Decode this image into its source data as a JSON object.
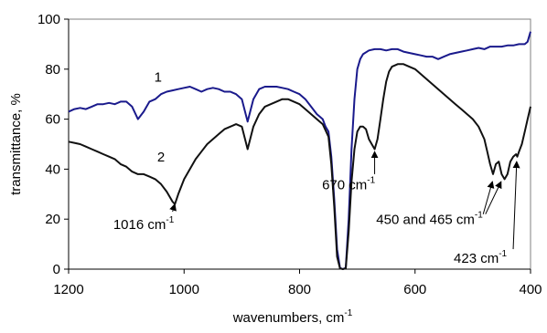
{
  "chart_data": {
    "type": "line",
    "title": "",
    "xlabel": "wavenumbers, cm",
    "xlabel_sup": "-1",
    "ylabel": "transmittance, %",
    "xlim": [
      1200,
      400
    ],
    "ylim": [
      0,
      100
    ],
    "x_reversed": true,
    "xticks": [
      1200,
      1000,
      800,
      600,
      400
    ],
    "yticks": [
      0,
      20,
      40,
      60,
      80,
      100
    ],
    "grid": false,
    "legend": "none",
    "series": [
      {
        "name": "1",
        "color": "#1a1a8c",
        "points": [
          [
            1200,
            63
          ],
          [
            1190,
            64
          ],
          [
            1180,
            64.5
          ],
          [
            1170,
            64
          ],
          [
            1160,
            65
          ],
          [
            1150,
            66
          ],
          [
            1140,
            66
          ],
          [
            1130,
            66.5
          ],
          [
            1120,
            66
          ],
          [
            1110,
            67
          ],
          [
            1100,
            67
          ],
          [
            1090,
            65
          ],
          [
            1080,
            60
          ],
          [
            1070,
            63
          ],
          [
            1060,
            67
          ],
          [
            1050,
            68
          ],
          [
            1040,
            70
          ],
          [
            1030,
            71
          ],
          [
            1020,
            71.5
          ],
          [
            1010,
            72
          ],
          [
            1000,
            72.5
          ],
          [
            990,
            73
          ],
          [
            980,
            72
          ],
          [
            970,
            71
          ],
          [
            960,
            72
          ],
          [
            950,
            72.5
          ],
          [
            940,
            72
          ],
          [
            930,
            71
          ],
          [
            920,
            71
          ],
          [
            910,
            70
          ],
          [
            900,
            68
          ],
          [
            890,
            59
          ],
          [
            880,
            68
          ],
          [
            870,
            72
          ],
          [
            860,
            73
          ],
          [
            850,
            73
          ],
          [
            840,
            73
          ],
          [
            830,
            72.5
          ],
          [
            820,
            72
          ],
          [
            810,
            71
          ],
          [
            800,
            70
          ],
          [
            790,
            68
          ],
          [
            780,
            65
          ],
          [
            770,
            62
          ],
          [
            760,
            60
          ],
          [
            755,
            57
          ],
          [
            750,
            55
          ],
          [
            745,
            45
          ],
          [
            740,
            28
          ],
          [
            735,
            8
          ],
          [
            730,
            0.5
          ],
          [
            725,
            0
          ],
          [
            720,
            0.5
          ],
          [
            715,
            20
          ],
          [
            710,
            48
          ],
          [
            705,
            68
          ],
          [
            700,
            80
          ],
          [
            695,
            84
          ],
          [
            690,
            86
          ],
          [
            680,
            87.5
          ],
          [
            670,
            88
          ],
          [
            660,
            88
          ],
          [
            650,
            87.5
          ],
          [
            640,
            88
          ],
          [
            630,
            88
          ],
          [
            620,
            87
          ],
          [
            610,
            86.5
          ],
          [
            600,
            86
          ],
          [
            590,
            85.5
          ],
          [
            580,
            85
          ],
          [
            570,
            85
          ],
          [
            560,
            84
          ],
          [
            550,
            85
          ],
          [
            540,
            86
          ],
          [
            530,
            86.5
          ],
          [
            520,
            87
          ],
          [
            510,
            87.5
          ],
          [
            500,
            88
          ],
          [
            490,
            88.5
          ],
          [
            480,
            88
          ],
          [
            470,
            89
          ],
          [
            460,
            89
          ],
          [
            450,
            89
          ],
          [
            440,
            89.5
          ],
          [
            430,
            89.5
          ],
          [
            420,
            90
          ],
          [
            410,
            90
          ],
          [
            405,
            91
          ],
          [
            400,
            95
          ]
        ]
      },
      {
        "name": "2",
        "color": "#111111",
        "points": [
          [
            1200,
            51
          ],
          [
            1190,
            50.5
          ],
          [
            1180,
            50
          ],
          [
            1170,
            49
          ],
          [
            1160,
            48
          ],
          [
            1150,
            47
          ],
          [
            1140,
            46
          ],
          [
            1130,
            45
          ],
          [
            1120,
            44
          ],
          [
            1110,
            42
          ],
          [
            1100,
            41
          ],
          [
            1090,
            39
          ],
          [
            1080,
            38
          ],
          [
            1070,
            38
          ],
          [
            1060,
            37
          ],
          [
            1050,
            36
          ],
          [
            1040,
            34
          ],
          [
            1030,
            31
          ],
          [
            1020,
            27
          ],
          [
            1016,
            26
          ],
          [
            1010,
            30
          ],
          [
            1000,
            36
          ],
          [
            990,
            40
          ],
          [
            980,
            44
          ],
          [
            970,
            47
          ],
          [
            960,
            50
          ],
          [
            950,
            52
          ],
          [
            940,
            54
          ],
          [
            930,
            56
          ],
          [
            920,
            57
          ],
          [
            910,
            58
          ],
          [
            900,
            57
          ],
          [
            890,
            48
          ],
          [
            880,
            57
          ],
          [
            870,
            62
          ],
          [
            860,
            65
          ],
          [
            850,
            66
          ],
          [
            840,
            67
          ],
          [
            830,
            68
          ],
          [
            820,
            68
          ],
          [
            810,
            67
          ],
          [
            800,
            66
          ],
          [
            790,
            64
          ],
          [
            780,
            62
          ],
          [
            770,
            60
          ],
          [
            760,
            58
          ],
          [
            750,
            53
          ],
          [
            745,
            42
          ],
          [
            740,
            25
          ],
          [
            735,
            5
          ],
          [
            730,
            0.3
          ],
          [
            725,
            0
          ],
          [
            720,
            0.3
          ],
          [
            715,
            15
          ],
          [
            710,
            35
          ],
          [
            705,
            48
          ],
          [
            700,
            55
          ],
          [
            695,
            57
          ],
          [
            690,
            57
          ],
          [
            685,
            56
          ],
          [
            680,
            52
          ],
          [
            675,
            50
          ],
          [
            670,
            48
          ],
          [
            665,
            52
          ],
          [
            660,
            60
          ],
          [
            655,
            68
          ],
          [
            650,
            75
          ],
          [
            645,
            79
          ],
          [
            640,
            81
          ],
          [
            630,
            82
          ],
          [
            620,
            82
          ],
          [
            610,
            81
          ],
          [
            600,
            80
          ],
          [
            590,
            78
          ],
          [
            580,
            76
          ],
          [
            570,
            74
          ],
          [
            560,
            72
          ],
          [
            550,
            70
          ],
          [
            540,
            68
          ],
          [
            530,
            66
          ],
          [
            520,
            64
          ],
          [
            510,
            62
          ],
          [
            500,
            60
          ],
          [
            490,
            57
          ],
          [
            480,
            52
          ],
          [
            475,
            47
          ],
          [
            470,
            42
          ],
          [
            465,
            38
          ],
          [
            460,
            42
          ],
          [
            455,
            43
          ],
          [
            450,
            38
          ],
          [
            445,
            36
          ],
          [
            440,
            38
          ],
          [
            435,
            43
          ],
          [
            430,
            45
          ],
          [
            425,
            46
          ],
          [
            423,
            45
          ],
          [
            420,
            47
          ],
          [
            415,
            50
          ],
          [
            410,
            55
          ],
          [
            405,
            60
          ],
          [
            400,
            65
          ]
        ]
      }
    ],
    "series_labels": [
      {
        "text": "1",
        "x": 1045,
        "y": 75
      },
      {
        "text": "2",
        "x": 1040,
        "y": 43
      }
    ],
    "annotations": [
      {
        "text": "1016 cm",
        "sup": "-1",
        "text_x": 1070,
        "text_y": 16,
        "arrows": [
          {
            "from": [
              1020,
              23
            ],
            "to": [
              1016,
              26
            ]
          }
        ]
      },
      {
        "text": "670 cm",
        "sup": "-1",
        "text_x": 715,
        "text_y": 32,
        "arrows": [
          {
            "from": [
              670,
              38
            ],
            "to": [
              670,
              47
            ]
          }
        ]
      },
      {
        "text": "450 and 465 cm",
        "sup": "-1",
        "text_x": 575,
        "text_y": 18,
        "arrows": [
          {
            "from": [
              482,
              22
            ],
            "to": [
              466,
              35
            ]
          },
          {
            "from": [
              478,
              22
            ],
            "to": [
              451,
              35
            ]
          }
        ]
      },
      {
        "text": "423 cm",
        "sup": "-1",
        "text_x": 487,
        "text_y": 2.5,
        "arrows": [
          {
            "from": [
              430,
              8
            ],
            "to": [
              424,
              43
            ]
          }
        ]
      }
    ]
  }
}
